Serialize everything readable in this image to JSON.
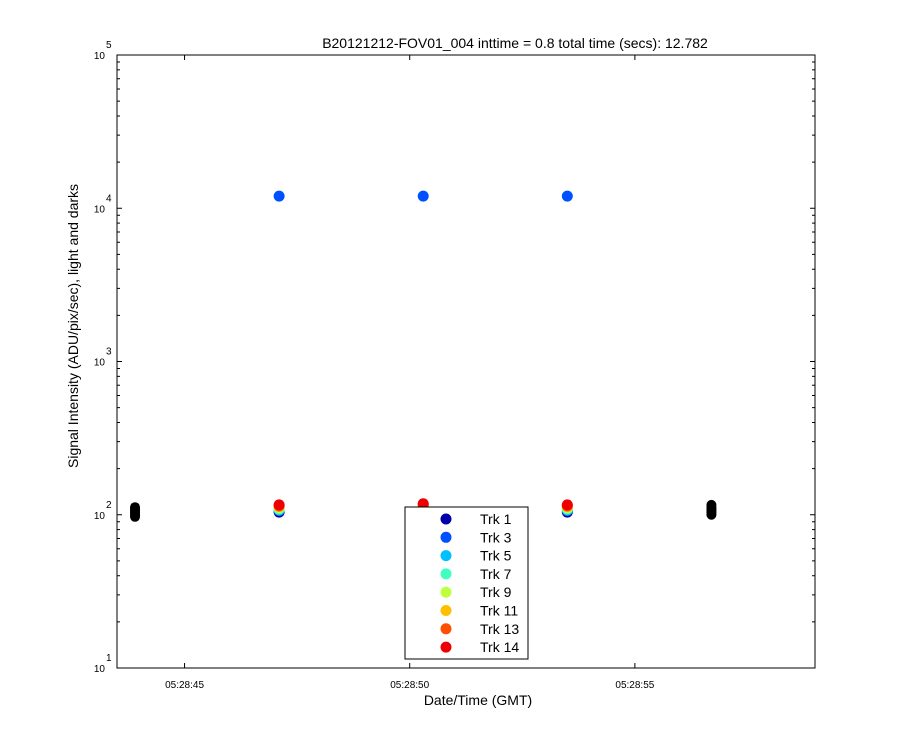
{
  "chart_data": {
    "type": "scatter",
    "title": "B20121212-FOV01_004 inttime = 0.8 total time (secs): 12.782",
    "xlabel": "Date/Time (GMT)",
    "ylabel": "Signal Intensity (ADU/pix/sec), light and darks",
    "yscale": "log",
    "ylim": [
      10,
      100000
    ],
    "xlim": [
      "05:28:43.5",
      "05:28:59"
    ],
    "x_ticks": [
      "05:28:45",
      "05:28:50",
      "05:28:55"
    ],
    "y_ticks": [
      {
        "value": 10,
        "base": "10",
        "exp": "1"
      },
      {
        "value": 100,
        "base": "10",
        "exp": "2"
      },
      {
        "value": 1000,
        "base": "10",
        "exp": "3"
      },
      {
        "value": 10000,
        "base": "10",
        "exp": "4"
      },
      {
        "value": 100000,
        "base": "10",
        "exp": "5"
      }
    ],
    "grid": false,
    "legend_position": "bottom-center",
    "series": [
      {
        "name": "Trk 1",
        "color": "#0000aa",
        "points": [
          [
            "05:28:47.1",
            104
          ],
          [
            "05:28:50.3",
            112
          ],
          [
            "05:28:53.5",
            104
          ]
        ]
      },
      {
        "name": "Trk 3",
        "color": "#0050ff",
        "points": [
          [
            "05:28:47.1",
            12000
          ],
          [
            "05:28:50.3",
            12000
          ],
          [
            "05:28:53.5",
            12000
          ]
        ]
      },
      {
        "name": "Trk 5",
        "color": "#00bfff",
        "points": [
          [
            "05:28:47.1",
            107
          ],
          [
            "05:28:50.3",
            113
          ],
          [
            "05:28:53.5",
            107
          ]
        ]
      },
      {
        "name": "Trk 7",
        "color": "#40ffc0",
        "points": [
          [
            "05:28:47.1",
            109
          ],
          [
            "05:28:50.3",
            114
          ],
          [
            "05:28:53.5",
            109
          ]
        ]
      },
      {
        "name": "Trk 9",
        "color": "#c0ff40",
        "points": [
          [
            "05:28:47.1",
            111
          ],
          [
            "05:28:50.3",
            115
          ],
          [
            "05:28:53.5",
            111
          ]
        ]
      },
      {
        "name": "Trk 11",
        "color": "#ffbf00",
        "points": [
          [
            "05:28:47.1",
            113
          ],
          [
            "05:28:50.3",
            116
          ],
          [
            "05:28:53.5",
            113
          ]
        ]
      },
      {
        "name": "Trk 13",
        "color": "#ff5000",
        "points": [
          [
            "05:28:47.1",
            114
          ],
          [
            "05:28:50.3",
            117
          ],
          [
            "05:28:53.5",
            114
          ]
        ]
      },
      {
        "name": "Trk 14",
        "color": "#ee0000",
        "points": [
          [
            "05:28:47.1",
            116
          ],
          [
            "05:28:50.3",
            118
          ],
          [
            "05:28:53.5",
            116
          ]
        ]
      }
    ],
    "darks": {
      "color": "#000000",
      "points": [
        [
          "05:28:43.9",
          97
        ],
        [
          "05:28:43.9",
          100
        ],
        [
          "05:28:43.9",
          103
        ],
        [
          "05:28:43.9",
          106
        ],
        [
          "05:28:43.9",
          109
        ],
        [
          "05:28:43.9",
          112
        ],
        [
          "05:28:56.7",
          100
        ],
        [
          "05:28:56.7",
          103
        ],
        [
          "05:28:56.7",
          106
        ],
        [
          "05:28:56.7",
          109
        ],
        [
          "05:28:56.7",
          112
        ],
        [
          "05:28:56.7",
          116
        ]
      ]
    }
  }
}
